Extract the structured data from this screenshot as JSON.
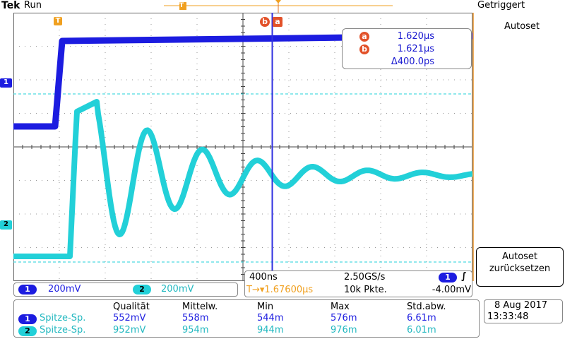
{
  "header": {
    "brand": "Tek",
    "run_state": "Run",
    "trigger_status": "Getriggert"
  },
  "menu": {
    "autoset_label": "Autoset",
    "reset_label_line1": "Autoset",
    "reset_label_line2": "zurücksetzen"
  },
  "markers": {
    "trigger_marker": "T",
    "cursor_a": "a",
    "cursor_b": "b",
    "ch1_label": "1",
    "ch2_label": "2"
  },
  "cursors": {
    "a_label": "a",
    "a_value": "1.620µs",
    "b_label": "b",
    "b_value": "1.621µs",
    "delta_value": "Δ400.0ps"
  },
  "channels": [
    {
      "id": "1",
      "scale": "200mV",
      "color": "#1c1ce0"
    },
    {
      "id": "2",
      "scale": "200mV",
      "color": "#22d0d8"
    }
  ],
  "timebase": {
    "horiz_scale": "400ns",
    "sample_rate": "2.50GS/s",
    "trigger_position": "T→▾1.67600µs",
    "record_length": "10k Pkte.",
    "trigger_source": "1",
    "trigger_slope": "∫",
    "trigger_level": "-4.00mV"
  },
  "measurements": {
    "headers": [
      "Qualität",
      "Mittelw.",
      "Min",
      "Max",
      "Std.abw."
    ],
    "rows": [
      {
        "channel": "1",
        "name": "Spitze-Sp.",
        "values": [
          "552mV",
          "558m",
          "544m",
          "576m",
          "6.61m"
        ]
      },
      {
        "channel": "2",
        "name": "Spitze-Sp.",
        "values": [
          "952mV",
          "954m",
          "944m",
          "976m",
          "6.01m"
        ]
      }
    ]
  },
  "clock": {
    "date": "8 Aug 2017",
    "time": "13:33:48"
  },
  "colors": {
    "ch1": "#1c1ce0",
    "ch2": "#22d0d8",
    "trigger": "#f0a020",
    "cursor": "#e2522a",
    "grid": "#999999"
  }
}
